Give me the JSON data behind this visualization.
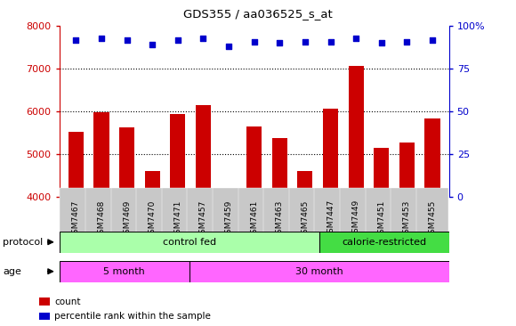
{
  "title": "GDS355 / aa036525_s_at",
  "samples": [
    "GSM7467",
    "GSM7468",
    "GSM7469",
    "GSM7470",
    "GSM7471",
    "GSM7457",
    "GSM7459",
    "GSM7461",
    "GSM7463",
    "GSM7465",
    "GSM7447",
    "GSM7449",
    "GSM7451",
    "GSM7453",
    "GSM7455"
  ],
  "counts": [
    5520,
    5980,
    5640,
    4620,
    5940,
    6160,
    4180,
    5650,
    5380,
    4620,
    6060,
    7060,
    5150,
    5280,
    5840
  ],
  "percentile_ranks": [
    92,
    93,
    92,
    89,
    92,
    93,
    88,
    91,
    90,
    91,
    91,
    93,
    90,
    91,
    92
  ],
  "ylim_left": [
    4000,
    8000
  ],
  "ylim_right": [
    0,
    100
  ],
  "bar_color": "#cc0000",
  "dot_color": "#0000cc",
  "grid_color": "#000000",
  "background_color": "#ffffff",
  "tick_bg": "#c8c8c8",
  "protocol_control_color": "#aaffaa",
  "protocol_calorie_color": "#44dd44",
  "age_color": "#ff66ff",
  "protocol_label": "protocol",
  "age_label": "age",
  "protocol_control_text": "control fed",
  "protocol_calorie_text": "calorie-restricted",
  "age_5month_text": "5 month",
  "age_30month_text": "30 month",
  "legend_count": "count",
  "legend_percentile": "percentile rank within the sample",
  "n_control_fed": 10,
  "n_5month": 5,
  "yticks_left": [
    4000,
    5000,
    6000,
    7000,
    8000
  ],
  "yticks_right": [
    0,
    25,
    50,
    75,
    100
  ],
  "ytick_right_labels": [
    "0",
    "25",
    "50",
    "75",
    "100%"
  ]
}
